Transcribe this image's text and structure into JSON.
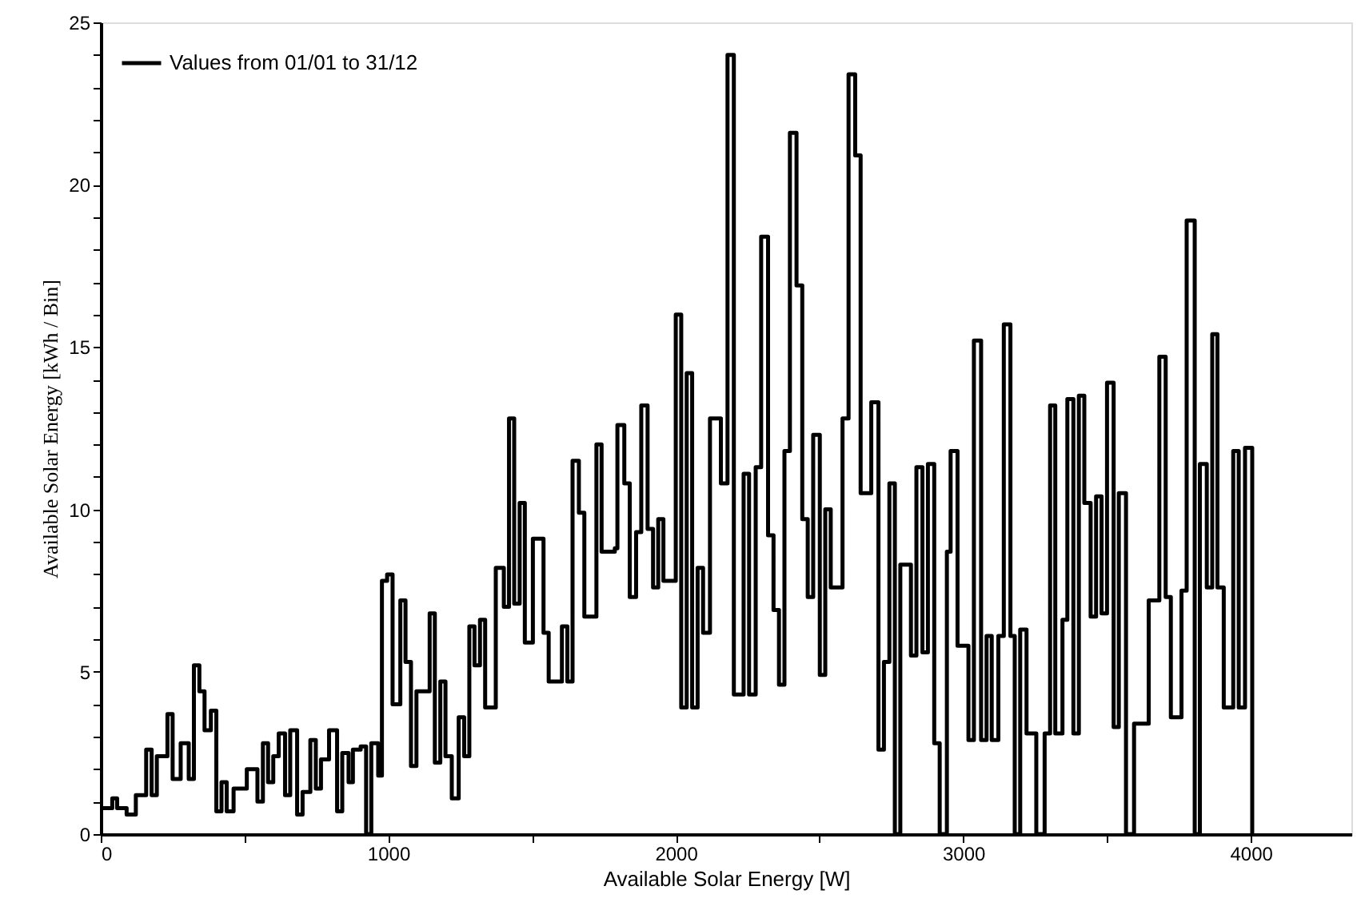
{
  "chart_data": {
    "type": "step",
    "xlabel": "Available Solar Energy [W]",
    "ylabel": "Available Solar Energy [kWh / Bin]",
    "xlim": [
      0,
      4350
    ],
    "ylim": [
      0,
      25
    ],
    "xticks": [
      0,
      {
        "value": 500,
        "label": null
      },
      1000,
      {
        "value": 1500,
        "label": null
      },
      2000,
      {
        "value": 2500,
        "label": null
      },
      3000,
      {
        "value": 3500,
        "label": null
      },
      4000
    ],
    "yticks": [
      0,
      {
        "value": 1,
        "label": null
      },
      {
        "value": 2,
        "label": null
      },
      {
        "value": 3,
        "label": null
      },
      {
        "value": 4,
        "label": null
      },
      5,
      {
        "value": 6,
        "label": null
      },
      {
        "value": 7,
        "label": null
      },
      {
        "value": 8,
        "label": null
      },
      {
        "value": 9,
        "label": null
      },
      10,
      {
        "value": 11,
        "label": null
      },
      {
        "value": 12,
        "label": null
      },
      {
        "value": 13,
        "label": null
      },
      {
        "value": 14,
        "label": null
      },
      15,
      {
        "value": 16,
        "label": null
      },
      {
        "value": 17,
        "label": null
      },
      {
        "value": 18,
        "label": null
      },
      {
        "value": 19,
        "label": null
      },
      20,
      {
        "value": 21,
        "label": null
      },
      {
        "value": 22,
        "label": null
      },
      {
        "value": 23,
        "label": null
      },
      {
        "value": 24,
        "label": null
      },
      25
    ],
    "grid": false,
    "legend": "top left",
    "marker": "none",
    "line_style": "solid",
    "series": [
      {
        "name": "Values from 01/01 to 31/12",
        "color": "#000000",
        "x": [
          0,
          40,
          57,
          90,
          122,
          158,
          177,
          195,
          232,
          250,
          278,
          306,
          324,
          343,
          361,
          383,
          402,
          420,
          438,
          462,
          508,
          545,
          564,
          582,
          600,
          619,
          641,
          659,
          683,
          702,
          729,
          748,
          766,
          794,
          822,
          840,
          862,
          877,
          904,
          923,
          941,
          965,
          978,
          996,
          1015,
          1042,
          1060,
          1079,
          1098,
          1144,
          1162,
          1181,
          1199,
          1221,
          1245,
          1264,
          1282,
          1300,
          1319,
          1337,
          1374,
          1402,
          1420,
          1438,
          1457,
          1475,
          1503,
          1540,
          1558,
          1604,
          1623,
          1641,
          1663,
          1682,
          1724,
          1742,
          1788,
          1797,
          1821,
          1840,
          1862,
          1880,
          1902,
          1921,
          1939,
          1957,
          2000,
          2019,
          2038,
          2057,
          2076,
          2095,
          2119,
          2157,
          2180,
          2202,
          2236,
          2255,
          2278,
          2297,
          2321,
          2340,
          2359,
          2378,
          2397,
          2420,
          2440,
          2459,
          2478,
          2501,
          2520,
          2539,
          2580,
          2601,
          2624,
          2643,
          2680,
          2705,
          2724,
          2743,
          2762,
          2781,
          2818,
          2837,
          2858,
          2877,
          2899,
          2918,
          2943,
          2956,
          2980,
          3018,
          3037,
          3062,
          3081,
          3099,
          3122,
          3141,
          3164,
          3179,
          3198,
          3220,
          3254,
          3283,
          3302,
          3320,
          3345,
          3362,
          3383,
          3402,
          3421,
          3443,
          3462,
          3481,
          3500,
          3523,
          3541,
          3566,
          3594,
          3645,
          3682,
          3704,
          3722,
          3759,
          3777,
          3805,
          3823,
          3847,
          3866,
          3884,
          3906,
          3939,
          3958,
          3980,
          4005
        ],
        "values": [
          0.8,
          1.1,
          0.8,
          0.6,
          1.2,
          2.6,
          1.2,
          2.4,
          3.7,
          1.7,
          2.8,
          1.7,
          5.2,
          4.4,
          3.2,
          3.8,
          0.7,
          1.6,
          0.7,
          1.4,
          2.0,
          1.0,
          2.8,
          1.6,
          2.4,
          3.1,
          1.2,
          3.2,
          0.6,
          1.3,
          2.9,
          1.4,
          2.3,
          3.2,
          0.7,
          2.5,
          1.6,
          2.6,
          2.7,
          0,
          2.8,
          1.8,
          7.8,
          8.0,
          4.0,
          7.2,
          5.3,
          2.1,
          4.4,
          6.8,
          2.2,
          4.7,
          2.4,
          1.1,
          3.6,
          2.4,
          6.4,
          5.2,
          6.6,
          3.9,
          8.2,
          7.0,
          12.8,
          7.1,
          10.2,
          5.9,
          9.1,
          6.2,
          4.7,
          6.4,
          4.7,
          11.5,
          9.9,
          6.7,
          12.0,
          8.7,
          8.8,
          12.6,
          10.8,
          7.3,
          9.3,
          13.2,
          9.4,
          7.6,
          9.7,
          7.8,
          16.0,
          3.9,
          14.2,
          3.9,
          8.2,
          6.2,
          12.8,
          10.8,
          24.0,
          4.3,
          11.1,
          4.3,
          11.3,
          18.4,
          9.2,
          6.9,
          4.6,
          11.8,
          21.6,
          16.9,
          9.7,
          7.3,
          12.3,
          4.9,
          10.0,
          7.6,
          12.8,
          23.4,
          20.9,
          10.5,
          13.3,
          2.6,
          5.3,
          10.8,
          0,
          8.3,
          5.5,
          11.3,
          5.6,
          11.4,
          2.8,
          0,
          8.7,
          11.8,
          5.8,
          2.9,
          15.2,
          2.9,
          6.1,
          2.9,
          6.1,
          15.7,
          6.1,
          0,
          6.3,
          3.1,
          0,
          3.1,
          13.2,
          3.1,
          6.6,
          13.4,
          3.1,
          13.5,
          10.2,
          6.7,
          10.4,
          6.8,
          13.9,
          3.3,
          10.5,
          0,
          3.4,
          7.2,
          14.7,
          7.3,
          3.6,
          7.5,
          18.9,
          0,
          11.4,
          7.6,
          15.4,
          7.6,
          3.9,
          11.8,
          3.9,
          11.9,
          0
        ]
      }
    ]
  }
}
